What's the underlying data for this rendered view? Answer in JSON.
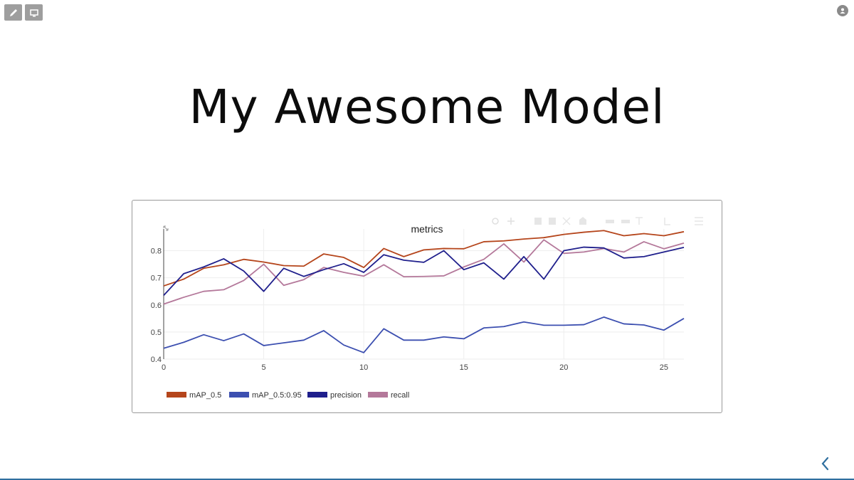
{
  "toolbar": {
    "edit_icon": "pencil-icon",
    "present_icon": "monitor-icon",
    "corner_icon": "user-icon"
  },
  "slide": {
    "title": "My Awesome Model"
  },
  "navigation": {
    "back_icon": "chevron-left-icon"
  },
  "colors": {
    "mAP_0.5": "#b5451b",
    "mAP_0.5:0.95": "#3c4fb0",
    "precision": "#1f1f8c",
    "recall": "#b4789a",
    "accent": "#2f6f9f"
  },
  "chart_data": {
    "type": "line",
    "title": "metrics",
    "xlabel": "",
    "ylabel": "",
    "xlim": [
      0,
      26
    ],
    "ylim": [
      0.4,
      0.88
    ],
    "x_ticks": [
      0,
      5,
      10,
      15,
      20,
      25
    ],
    "y_ticks": [
      0.4,
      0.5,
      0.6,
      0.7,
      0.8
    ],
    "grid": true,
    "legend_position": "bottom-left",
    "x": [
      0,
      1,
      2,
      3,
      4,
      5,
      6,
      7,
      8,
      9,
      10,
      11,
      12,
      13,
      14,
      15,
      16,
      17,
      18,
      19,
      20,
      21,
      22,
      23,
      24,
      25,
      26
    ],
    "series": [
      {
        "name": "mAP_0.5",
        "values": [
          0.67,
          0.695,
          0.735,
          0.748,
          0.768,
          0.758,
          0.745,
          0.743,
          0.788,
          0.775,
          0.738,
          0.808,
          0.778,
          0.803,
          0.808,
          0.807,
          0.833,
          0.836,
          0.843,
          0.848,
          0.86,
          0.868,
          0.874,
          0.855,
          0.863,
          0.855,
          0.87
        ]
      },
      {
        "name": "mAP_0.5:0.95",
        "values": [
          0.44,
          0.462,
          0.49,
          0.468,
          0.493,
          0.45,
          0.46,
          0.47,
          0.505,
          0.452,
          0.424,
          0.512,
          0.47,
          0.47,
          0.482,
          0.475,
          0.515,
          0.52,
          0.537,
          0.525,
          0.525,
          0.527,
          0.555,
          0.53,
          0.526,
          0.507,
          0.55
        ]
      },
      {
        "name": "precision",
        "values": [
          0.635,
          0.715,
          0.74,
          0.77,
          0.725,
          0.65,
          0.735,
          0.705,
          0.73,
          0.752,
          0.72,
          0.785,
          0.765,
          0.757,
          0.8,
          0.73,
          0.755,
          0.695,
          0.778,
          0.695,
          0.8,
          0.813,
          0.81,
          0.773,
          0.778,
          0.795,
          0.812
        ]
      },
      {
        "name": "recall",
        "values": [
          0.603,
          0.628,
          0.65,
          0.656,
          0.69,
          0.75,
          0.672,
          0.693,
          0.738,
          0.72,
          0.706,
          0.748,
          0.704,
          0.705,
          0.707,
          0.74,
          0.768,
          0.825,
          0.758,
          0.84,
          0.79,
          0.795,
          0.808,
          0.795,
          0.833,
          0.807,
          0.828
        ]
      }
    ]
  }
}
